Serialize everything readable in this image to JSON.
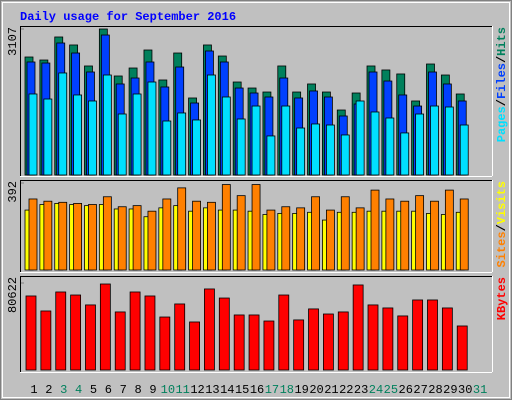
{
  "chart_data": [
    {
      "type": "bar",
      "title": "Daily usage for September 2016",
      "legend_separator": "/",
      "ylim": [
        0,
        3107
      ],
      "yticks": [
        3107
      ],
      "series": [
        {
          "name": "Hits",
          "color": "#00805c",
          "values": [
            2511,
            2447,
            2937,
            2767,
            2320,
            3107,
            2107,
            2277,
            2660,
            2022,
            2596,
            1639,
            2767,
            2532,
            1979,
            1851,
            1766,
            2320,
            1766,
            1937,
            1766,
            1383,
            1745,
            2320,
            2235,
            2150,
            1575,
            2362,
            2128,
            1724,
            null
          ]
        },
        {
          "name": "Files",
          "color": "#0040ff",
          "values": [
            2405,
            2383,
            2809,
            2596,
            2192,
            2979,
            1937,
            2064,
            2405,
            1873,
            2298,
            1532,
            2639,
            2405,
            1851,
            1745,
            1660,
            2064,
            1639,
            1788,
            1660,
            1256,
            1511,
            2192,
            2000,
            1703,
            1468,
            2192,
            1937,
            1575,
            null
          ]
        },
        {
          "name": "Pages",
          "color": "#00e0ff",
          "values": [
            1724,
            1617,
            2171,
            1703,
            1575,
            2128,
            1298,
            1724,
            1979,
            1149,
            1320,
            1171,
            2128,
            1660,
            1192,
            1468,
            831,
            1468,
            1000,
            1086,
            1064,
            852,
            1575,
            1341,
            1213,
            895,
            1298,
            1468,
            1447,
            1064,
            null
          ]
        }
      ]
    },
    {
      "type": "bar",
      "legend_separator": "/",
      "ylim": [
        0,
        392
      ],
      "yticks": [
        392
      ],
      "series": [
        {
          "name": "Visits",
          "color": "#ffff00",
          "values": [
            270,
            295,
            300,
            295,
            290,
            295,
            275,
            275,
            240,
            280,
            290,
            265,
            280,
            270,
            270,
            265,
            250,
            255,
            255,
            260,
            225,
            260,
            260,
            265,
            265,
            265,
            265,
            255,
            250,
            260,
            null
          ]
        },
        {
          "name": "Sites",
          "color": "#ff8000",
          "values": [
            320,
            310,
            305,
            300,
            295,
            330,
            285,
            290,
            265,
            320,
            370,
            310,
            305,
            385,
            335,
            385,
            270,
            285,
            280,
            330,
            270,
            330,
            280,
            360,
            320,
            310,
            335,
            310,
            360,
            320,
            null
          ]
        }
      ]
    },
    {
      "type": "bar",
      "ylim": [
        0,
        80622
      ],
      "yticks": [
        80622
      ],
      "categories": [
        "1",
        "2",
        "3",
        "4",
        "5",
        "6",
        "7",
        "8",
        "9",
        "10",
        "11",
        "12",
        "13",
        "14",
        "15",
        "16",
        "17",
        "18",
        "19",
        "20",
        "21",
        "22",
        "23",
        "24",
        "25",
        "26",
        "27",
        "28",
        "29",
        "30",
        "31"
      ],
      "category_color": "#000000",
      "highlight_color": "#00805c",
      "highlight_categories": [
        "3",
        "4",
        "10",
        "11",
        "17",
        "18",
        "24",
        "25",
        "31"
      ],
      "series": [
        {
          "name": "KBytes",
          "color": "#ff0000",
          "values": [
            68600,
            54700,
            72300,
            69500,
            60300,
            79700,
            53800,
            72300,
            68600,
            49100,
            61200,
            44500,
            75100,
            66700,
            51000,
            51000,
            45400,
            69500,
            46400,
            56600,
            51900,
            53800,
            78800,
            60300,
            57500,
            50100,
            64900,
            64900,
            57500,
            40800,
            null
          ]
        }
      ]
    }
  ]
}
